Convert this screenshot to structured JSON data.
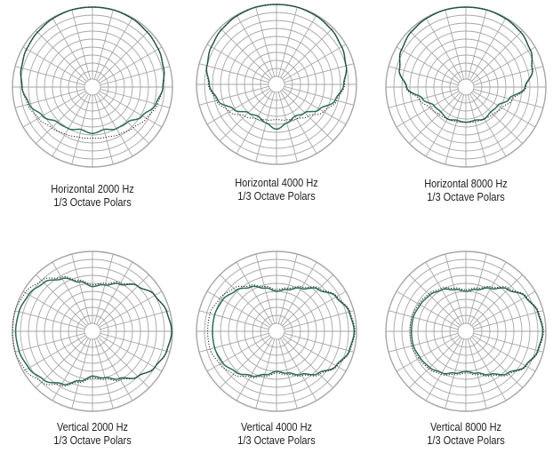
{
  "chart_data": [
    {
      "type": "polar",
      "title": "Horizontal 2000 Hz",
      "subtitle": "1/3 Octave Polars",
      "radial_rings": 10,
      "angular_divisions": 24,
      "grid": true,
      "colors": {
        "measured": "#2d6a58",
        "reference": "#222222",
        "grid": "#a6a6a6"
      },
      "series": [
        {
          "style": "solid",
          "angles_deg": [
            0,
            15,
            30,
            45,
            60,
            75,
            90,
            105,
            120,
            135,
            150,
            165,
            180,
            195,
            210,
            225,
            240,
            255,
            270,
            285,
            300,
            315,
            330,
            345
          ],
          "values": [
            1.0,
            1.0,
            0.99,
            0.97,
            0.95,
            0.92,
            0.88,
            0.82,
            0.72,
            0.62,
            0.6,
            0.55,
            0.58,
            0.55,
            0.6,
            0.62,
            0.72,
            0.82,
            0.88,
            0.92,
            0.95,
            0.97,
            0.99,
            1.0
          ]
        },
        {
          "style": "dotted",
          "angles_deg": [
            0,
            15,
            30,
            45,
            60,
            75,
            90,
            105,
            120,
            135,
            150,
            165,
            180,
            195,
            210,
            225,
            240,
            255,
            270,
            285,
            300,
            315,
            330,
            345
          ],
          "values": [
            1.0,
            1.0,
            0.99,
            0.97,
            0.95,
            0.92,
            0.88,
            0.84,
            0.78,
            0.72,
            0.68,
            0.65,
            0.64,
            0.65,
            0.68,
            0.72,
            0.78,
            0.84,
            0.88,
            0.92,
            0.95,
            0.97,
            0.99,
            1.0
          ]
        }
      ]
    },
    {
      "type": "polar",
      "title": "Horizontal 4000 Hz",
      "subtitle": "1/3 Octave Polars",
      "radial_rings": 10,
      "angular_divisions": 24,
      "grid": true,
      "colors": {
        "measured": "#2d6a58",
        "reference": "#222222",
        "grid": "#a6a6a6"
      },
      "series": [
        {
          "style": "solid",
          "angles_deg": [
            0,
            15,
            30,
            45,
            60,
            75,
            90,
            105,
            120,
            135,
            150,
            165,
            180,
            195,
            210,
            225,
            240,
            255,
            270,
            285,
            300,
            315,
            330,
            345
          ],
          "values": [
            1.0,
            1.0,
            0.99,
            0.97,
            0.94,
            0.9,
            0.84,
            0.76,
            0.62,
            0.5,
            0.46,
            0.5,
            0.56,
            0.5,
            0.46,
            0.5,
            0.62,
            0.76,
            0.84,
            0.9,
            0.94,
            0.97,
            0.99,
            1.0
          ]
        },
        {
          "style": "dotted",
          "angles_deg": [
            0,
            15,
            30,
            45,
            60,
            75,
            90,
            105,
            120,
            135,
            150,
            165,
            180,
            195,
            210,
            225,
            240,
            255,
            270,
            285,
            300,
            315,
            330,
            345
          ],
          "values": [
            1.0,
            1.0,
            0.99,
            0.97,
            0.94,
            0.9,
            0.85,
            0.78,
            0.68,
            0.56,
            0.5,
            0.46,
            0.44,
            0.46,
            0.5,
            0.56,
            0.68,
            0.78,
            0.85,
            0.9,
            0.94,
            0.97,
            0.99,
            1.0
          ]
        }
      ]
    },
    {
      "type": "polar",
      "title": "Horizontal 8000 Hz",
      "subtitle": "1/3 Octave Polars",
      "radial_rings": 10,
      "angular_divisions": 24,
      "grid": true,
      "colors": {
        "measured": "#2d6a58",
        "reference": "#222222",
        "grid": "#a6a6a6"
      },
      "series": [
        {
          "style": "solid",
          "angles_deg": [
            0,
            15,
            30,
            45,
            60,
            75,
            90,
            105,
            120,
            135,
            150,
            165,
            180,
            195,
            210,
            225,
            240,
            255,
            270,
            285,
            300,
            315,
            330,
            345
          ],
          "values": [
            1.0,
            1.0,
            0.99,
            0.97,
            0.93,
            0.86,
            0.74,
            0.56,
            0.46,
            0.44,
            0.46,
            0.43,
            0.44,
            0.43,
            0.46,
            0.44,
            0.46,
            0.56,
            0.74,
            0.86,
            0.93,
            0.97,
            0.99,
            1.0
          ]
        },
        {
          "style": "dotted",
          "angles_deg": [
            0,
            15,
            30,
            45,
            60,
            75,
            90,
            105,
            120,
            135,
            150,
            165,
            180,
            195,
            210,
            225,
            240,
            255,
            270,
            285,
            300,
            315,
            330,
            345
          ],
          "values": [
            1.0,
            1.0,
            0.99,
            0.97,
            0.93,
            0.86,
            0.75,
            0.6,
            0.52,
            0.48,
            0.46,
            0.45,
            0.44,
            0.45,
            0.46,
            0.48,
            0.52,
            0.6,
            0.75,
            0.86,
            0.93,
            0.97,
            0.99,
            1.0
          ]
        }
      ]
    },
    {
      "type": "polar",
      "title": "Vertical 2000 Hz",
      "subtitle": "1/3 Octave Polars",
      "radial_rings": 10,
      "angular_divisions": 24,
      "grid": true,
      "colors": {
        "measured": "#2d6a58",
        "reference": "#222222",
        "grid": "#a6a6a6"
      },
      "series": [
        {
          "style": "solid",
          "angles_deg": [
            0,
            15,
            30,
            45,
            60,
            75,
            90,
            105,
            120,
            135,
            150,
            165,
            180,
            195,
            210,
            225,
            240,
            255,
            270,
            285,
            300,
            315,
            330,
            345
          ],
          "values": [
            0.56,
            0.6,
            0.68,
            0.8,
            0.9,
            0.96,
            0.99,
            0.96,
            0.9,
            0.8,
            0.68,
            0.6,
            0.56,
            0.64,
            0.76,
            0.86,
            0.92,
            0.95,
            0.96,
            0.95,
            0.92,
            0.86,
            0.76,
            0.64
          ]
        },
        {
          "style": "dotted",
          "angles_deg": [
            0,
            15,
            30,
            45,
            60,
            75,
            90,
            105,
            120,
            135,
            150,
            165,
            180,
            195,
            210,
            225,
            240,
            255,
            270,
            285,
            300,
            315,
            330,
            345
          ],
          "values": [
            0.58,
            0.62,
            0.7,
            0.8,
            0.9,
            0.96,
            0.99,
            0.96,
            0.9,
            0.8,
            0.7,
            0.62,
            0.58,
            0.66,
            0.78,
            0.9,
            0.97,
            1.0,
            1.0,
            1.0,
            0.97,
            0.9,
            0.78,
            0.66
          ]
        }
      ]
    },
    {
      "type": "polar",
      "title": "Vertical 4000 Hz",
      "subtitle": "1/3 Octave Polars",
      "radial_rings": 10,
      "angular_divisions": 24,
      "grid": true,
      "colors": {
        "measured": "#2d6a58",
        "reference": "#222222",
        "grid": "#a6a6a6"
      },
      "series": [
        {
          "style": "solid",
          "angles_deg": [
            0,
            15,
            30,
            45,
            60,
            75,
            90,
            105,
            120,
            135,
            150,
            165,
            180,
            195,
            210,
            225,
            240,
            255,
            270,
            285,
            300,
            315,
            330,
            345
          ],
          "values": [
            0.5,
            0.54,
            0.62,
            0.74,
            0.86,
            0.94,
            0.97,
            0.94,
            0.86,
            0.74,
            0.62,
            0.54,
            0.5,
            0.56,
            0.64,
            0.72,
            0.78,
            0.8,
            0.8,
            0.8,
            0.78,
            0.72,
            0.64,
            0.56
          ]
        },
        {
          "style": "dotted",
          "angles_deg": [
            0,
            15,
            30,
            45,
            60,
            75,
            90,
            105,
            120,
            135,
            150,
            165,
            180,
            195,
            210,
            225,
            240,
            255,
            270,
            285,
            300,
            315,
            330,
            345
          ],
          "values": [
            0.52,
            0.56,
            0.64,
            0.76,
            0.87,
            0.95,
            0.98,
            0.95,
            0.87,
            0.76,
            0.64,
            0.56,
            0.52,
            0.58,
            0.66,
            0.76,
            0.82,
            0.86,
            0.86,
            0.86,
            0.82,
            0.76,
            0.66,
            0.58
          ]
        }
      ]
    },
    {
      "type": "polar",
      "title": "Vertical 8000 Hz",
      "subtitle": "1/3 Octave Polars",
      "radial_rings": 10,
      "angular_divisions": 24,
      "grid": true,
      "colors": {
        "measured": "#2d6a58",
        "reference": "#222222",
        "grid": "#a6a6a6"
      },
      "series": [
        {
          "style": "solid",
          "angles_deg": [
            0,
            15,
            30,
            45,
            60,
            75,
            90,
            105,
            120,
            135,
            150,
            165,
            180,
            195,
            210,
            225,
            240,
            255,
            270,
            285,
            300,
            315,
            330,
            345
          ],
          "values": [
            0.5,
            0.54,
            0.62,
            0.74,
            0.86,
            0.93,
            0.96,
            0.93,
            0.86,
            0.74,
            0.62,
            0.54,
            0.5,
            0.54,
            0.6,
            0.64,
            0.66,
            0.68,
            0.68,
            0.68,
            0.66,
            0.64,
            0.6,
            0.54
          ]
        },
        {
          "style": "dotted",
          "angles_deg": [
            0,
            15,
            30,
            45,
            60,
            75,
            90,
            105,
            120,
            135,
            150,
            165,
            180,
            195,
            210,
            225,
            240,
            255,
            270,
            285,
            300,
            315,
            330,
            345
          ],
          "values": [
            0.52,
            0.56,
            0.64,
            0.76,
            0.87,
            0.94,
            0.97,
            0.94,
            0.87,
            0.76,
            0.64,
            0.56,
            0.52,
            0.56,
            0.62,
            0.66,
            0.68,
            0.7,
            0.7,
            0.7,
            0.68,
            0.66,
            0.62,
            0.56
          ]
        }
      ]
    }
  ]
}
